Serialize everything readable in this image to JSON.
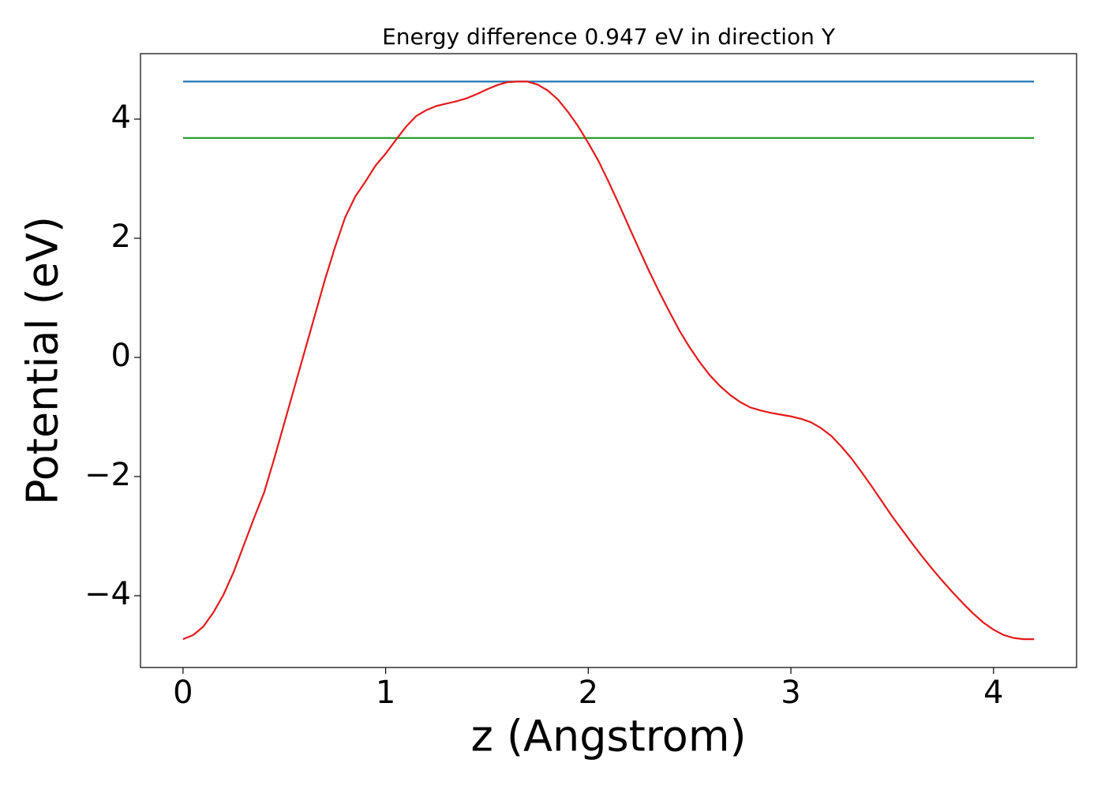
{
  "chart_data": {
    "type": "line",
    "title": "Energy difference 0.947 eV in direction Y",
    "xlabel": "z (Angstrom)",
    "ylabel": "Potential (eV)",
    "xlim": [
      -0.21,
      4.41
    ],
    "ylim": [
      -5.205,
      5.099
    ],
    "xticks": [
      0,
      1,
      2,
      3,
      4
    ],
    "yticks": [
      {
        "value": -4,
        "label": "−4"
      },
      {
        "value": -2,
        "label": "−2"
      },
      0,
      2,
      4
    ],
    "series": [
      {
        "color": "#1f77b4",
        "x": [
          0,
          4.2
        ],
        "values": [
          4.63,
          4.63
        ]
      },
      {
        "color": "#2ca02c",
        "x": [
          0,
          4.2
        ],
        "values": [
          3.683,
          3.683
        ]
      },
      {
        "color": "#e31a1c",
        "x": [
          0,
          0.05,
          0.1,
          0.15,
          0.2,
          0.25,
          0.3,
          0.35,
          0.4,
          0.45,
          0.5,
          0.55,
          0.6,
          0.65,
          0.7,
          0.75,
          0.8,
          0.85,
          0.9,
          0.95,
          1.0,
          1.05,
          1.1,
          1.15,
          1.2,
          1.25,
          1.3,
          1.35,
          1.4,
          1.45,
          1.5,
          1.55,
          1.6,
          1.65,
          1.7,
          1.75,
          1.8,
          1.85,
          1.9,
          1.95,
          2.0,
          2.05,
          2.1,
          2.15,
          2.2,
          2.25,
          2.3,
          2.35,
          2.4,
          2.45,
          2.5,
          2.55,
          2.6,
          2.65,
          2.7,
          2.75,
          2.8,
          2.85,
          2.9,
          2.95,
          3.0,
          3.05,
          3.1,
          3.15,
          3.2,
          3.25,
          3.3,
          3.35,
          3.4,
          3.45,
          3.5,
          3.55,
          3.6,
          3.65,
          3.7,
          3.75,
          3.8,
          3.85,
          3.9,
          3.95,
          4.0,
          4.05,
          4.1,
          4.15,
          4.2
        ],
        "values": [
          -4.73,
          -4.66,
          -4.52,
          -4.28,
          -3.98,
          -3.6,
          -3.15,
          -2.7,
          -2.27,
          -1.7,
          -1.1,
          -0.5,
          0.1,
          0.7,
          1.3,
          1.85,
          2.35,
          2.7,
          2.95,
          3.22,
          3.42,
          3.65,
          3.87,
          4.05,
          4.15,
          4.22,
          4.26,
          4.3,
          4.35,
          4.42,
          4.5,
          4.57,
          4.62,
          4.63,
          4.63,
          4.58,
          4.48,
          4.33,
          4.12,
          3.88,
          3.6,
          3.3,
          2.95,
          2.58,
          2.2,
          1.82,
          1.45,
          1.1,
          0.77,
          0.45,
          0.17,
          -0.08,
          -0.3,
          -0.48,
          -0.63,
          -0.75,
          -0.84,
          -0.89,
          -0.93,
          -0.96,
          -0.99,
          -1.03,
          -1.09,
          -1.19,
          -1.32,
          -1.5,
          -1.7,
          -1.93,
          -2.17,
          -2.42,
          -2.67,
          -2.9,
          -3.13,
          -3.35,
          -3.56,
          -3.76,
          -3.95,
          -4.13,
          -4.3,
          -4.45,
          -4.57,
          -4.66,
          -4.71,
          -4.73,
          -4.73
        ]
      }
    ]
  }
}
